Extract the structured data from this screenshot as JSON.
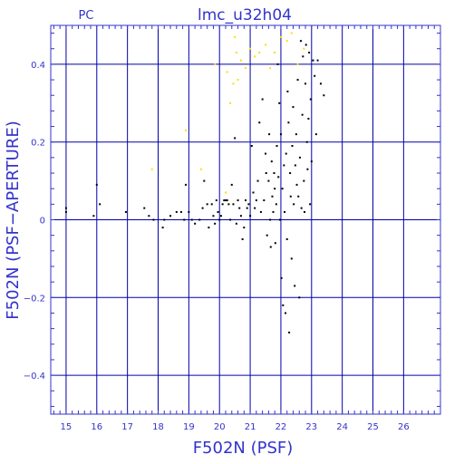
{
  "chart_data": {
    "type": "scatter",
    "title": "lmc_u32h04",
    "subtitle": "PC",
    "xlabel": "F502N (PSF)",
    "ylabel": "F502N (PSF−APERTURE)",
    "xlim": [
      14.5,
      27.2
    ],
    "ylim": [
      -0.5,
      0.5
    ],
    "grid": true,
    "x_ticks": [
      15,
      16,
      17,
      18,
      19,
      20,
      21,
      22,
      23,
      24,
      25,
      26
    ],
    "y_ticks": [
      -0.4,
      -0.2,
      0,
      0.2,
      0.4
    ],
    "y_tick_labels": [
      "−0.4",
      "−0.2",
      "0",
      "0.2",
      "0.4"
    ],
    "colors": {
      "axes": "#3333cc",
      "grid": "#0000aa",
      "series_black": "#000000",
      "series_yellow": "#ffdd00"
    },
    "series": [
      {
        "color": "#000000",
        "points": [
          [
            15.0,
            0.02
          ],
          [
            15.0,
            0.03
          ],
          [
            15.9,
            0.01
          ],
          [
            16.0,
            0.09
          ],
          [
            16.1,
            0.04
          ],
          [
            16.95,
            0.02
          ],
          [
            17.55,
            0.03
          ],
          [
            17.7,
            0.01
          ],
          [
            17.85,
            0.0
          ],
          [
            18.15,
            -0.02
          ],
          [
            18.2,
            0.0
          ],
          [
            18.4,
            0.01
          ],
          [
            18.6,
            0.02
          ],
          [
            18.75,
            0.02
          ],
          [
            18.85,
            0.0
          ],
          [
            18.9,
            0.09
          ],
          [
            19.0,
            0.02
          ],
          [
            19.1,
            0.0
          ],
          [
            19.2,
            -0.01
          ],
          [
            19.35,
            0.0
          ],
          [
            19.45,
            0.03
          ],
          [
            19.5,
            0.1
          ],
          [
            19.6,
            0.04
          ],
          [
            19.65,
            -0.02
          ],
          [
            19.75,
            0.04
          ],
          [
            19.8,
            0.01
          ],
          [
            19.85,
            -0.01
          ],
          [
            19.9,
            0.05
          ],
          [
            19.95,
            0.02
          ],
          [
            20.0,
            0.0
          ],
          [
            20.05,
            0.01
          ],
          [
            20.1,
            0.04
          ],
          [
            20.15,
            0.05
          ],
          [
            20.2,
            0.05
          ],
          [
            20.25,
            0.05
          ],
          [
            20.3,
            0.04
          ],
          [
            20.35,
            0.0
          ],
          [
            20.4,
            0.09
          ],
          [
            20.45,
            0.04
          ],
          [
            20.5,
            0.21
          ],
          [
            20.55,
            -0.01
          ],
          [
            20.6,
            0.05
          ],
          [
            20.65,
            0.03
          ],
          [
            20.7,
            0.01
          ],
          [
            20.75,
            -0.05
          ],
          [
            20.8,
            -0.02
          ],
          [
            20.85,
            0.05
          ],
          [
            20.9,
            0.03
          ],
          [
            20.95,
            0.04
          ],
          [
            21.0,
            0.01
          ],
          [
            21.05,
            0.19
          ],
          [
            21.1,
            0.07
          ],
          [
            21.15,
            0.03
          ],
          [
            21.2,
            0.05
          ],
          [
            21.25,
            0.1
          ],
          [
            21.3,
            0.25
          ],
          [
            21.35,
            0.02
          ],
          [
            21.4,
            0.31
          ],
          [
            21.45,
            0.05
          ],
          [
            21.5,
            0.17
          ],
          [
            21.52,
            0.12
          ],
          [
            21.55,
            -0.04
          ],
          [
            21.6,
            0.1
          ],
          [
            21.62,
            0.22
          ],
          [
            21.65,
            0.0
          ],
          [
            21.67,
            -0.07
          ],
          [
            21.7,
            0.15
          ],
          [
            21.72,
            0.06
          ],
          [
            21.75,
            0.02
          ],
          [
            21.78,
            0.12
          ],
          [
            21.8,
            0.08
          ],
          [
            21.82,
            -0.06
          ],
          [
            21.85,
            0.04
          ],
          [
            21.87,
            0.19
          ],
          [
            21.9,
            0.4
          ],
          [
            21.92,
            0.11
          ],
          [
            21.95,
            0.3
          ],
          [
            21.97,
            0.0
          ],
          [
            22.0,
            0.22
          ],
          [
            22.02,
            -0.15
          ],
          [
            22.05,
            0.08
          ],
          [
            22.07,
            -0.22
          ],
          [
            22.1,
            0.14
          ],
          [
            22.12,
            0.02
          ],
          [
            22.15,
            -0.24
          ],
          [
            22.17,
            0.17
          ],
          [
            22.2,
            -0.05
          ],
          [
            22.22,
            0.33
          ],
          [
            22.25,
            0.25
          ],
          [
            22.27,
            -0.29
          ],
          [
            22.3,
            0.12
          ],
          [
            22.32,
            0.06
          ],
          [
            22.35,
            -0.1
          ],
          [
            22.37,
            0.19
          ],
          [
            22.4,
            0.29
          ],
          [
            22.42,
            0.04
          ],
          [
            22.45,
            -0.17
          ],
          [
            22.47,
            0.14
          ],
          [
            22.5,
            0.22
          ],
          [
            22.52,
            0.09
          ],
          [
            22.55,
            0.36
          ],
          [
            22.57,
            0.06
          ],
          [
            22.6,
            -0.2
          ],
          [
            22.62,
            0.16
          ],
          [
            22.65,
            0.46
          ],
          [
            22.67,
            0.03
          ],
          [
            22.7,
            0.27
          ],
          [
            22.72,
            0.42
          ],
          [
            22.75,
            0.1
          ],
          [
            22.77,
            0.02
          ],
          [
            22.8,
            0.35
          ],
          [
            22.82,
            0.45
          ],
          [
            22.85,
            0.2
          ],
          [
            22.87,
            0.13
          ],
          [
            22.9,
            0.26
          ],
          [
            22.92,
            0.43
          ],
          [
            22.95,
            0.04
          ],
          [
            22.97,
            0.31
          ],
          [
            23.0,
            0.15
          ],
          [
            23.05,
            0.41
          ],
          [
            23.1,
            0.37
          ],
          [
            23.15,
            0.22
          ],
          [
            23.2,
            0.41
          ],
          [
            23.3,
            0.35
          ],
          [
            23.4,
            0.32
          ]
        ]
      },
      {
        "color": "#ffdd00",
        "points": [
          [
            17.8,
            0.13
          ],
          [
            18.9,
            0.23
          ],
          [
            19.4,
            0.13
          ],
          [
            19.85,
            0.4
          ],
          [
            20.25,
            0.38
          ],
          [
            20.35,
            0.3
          ],
          [
            20.45,
            0.35
          ],
          [
            20.5,
            0.47
          ],
          [
            20.55,
            0.43
          ],
          [
            20.6,
            0.36
          ],
          [
            20.7,
            0.41
          ],
          [
            20.85,
            0.39
          ],
          [
            21.0,
            0.44
          ],
          [
            21.15,
            0.42
          ],
          [
            21.3,
            0.43
          ],
          [
            21.5,
            0.45
          ],
          [
            21.65,
            0.39
          ],
          [
            21.8,
            0.43
          ],
          [
            22.0,
            0.47
          ],
          [
            22.2,
            0.46
          ],
          [
            22.35,
            0.48
          ],
          [
            22.55,
            0.4
          ],
          [
            22.75,
            0.44
          ],
          [
            20.2,
            0.07
          ]
        ]
      }
    ]
  }
}
